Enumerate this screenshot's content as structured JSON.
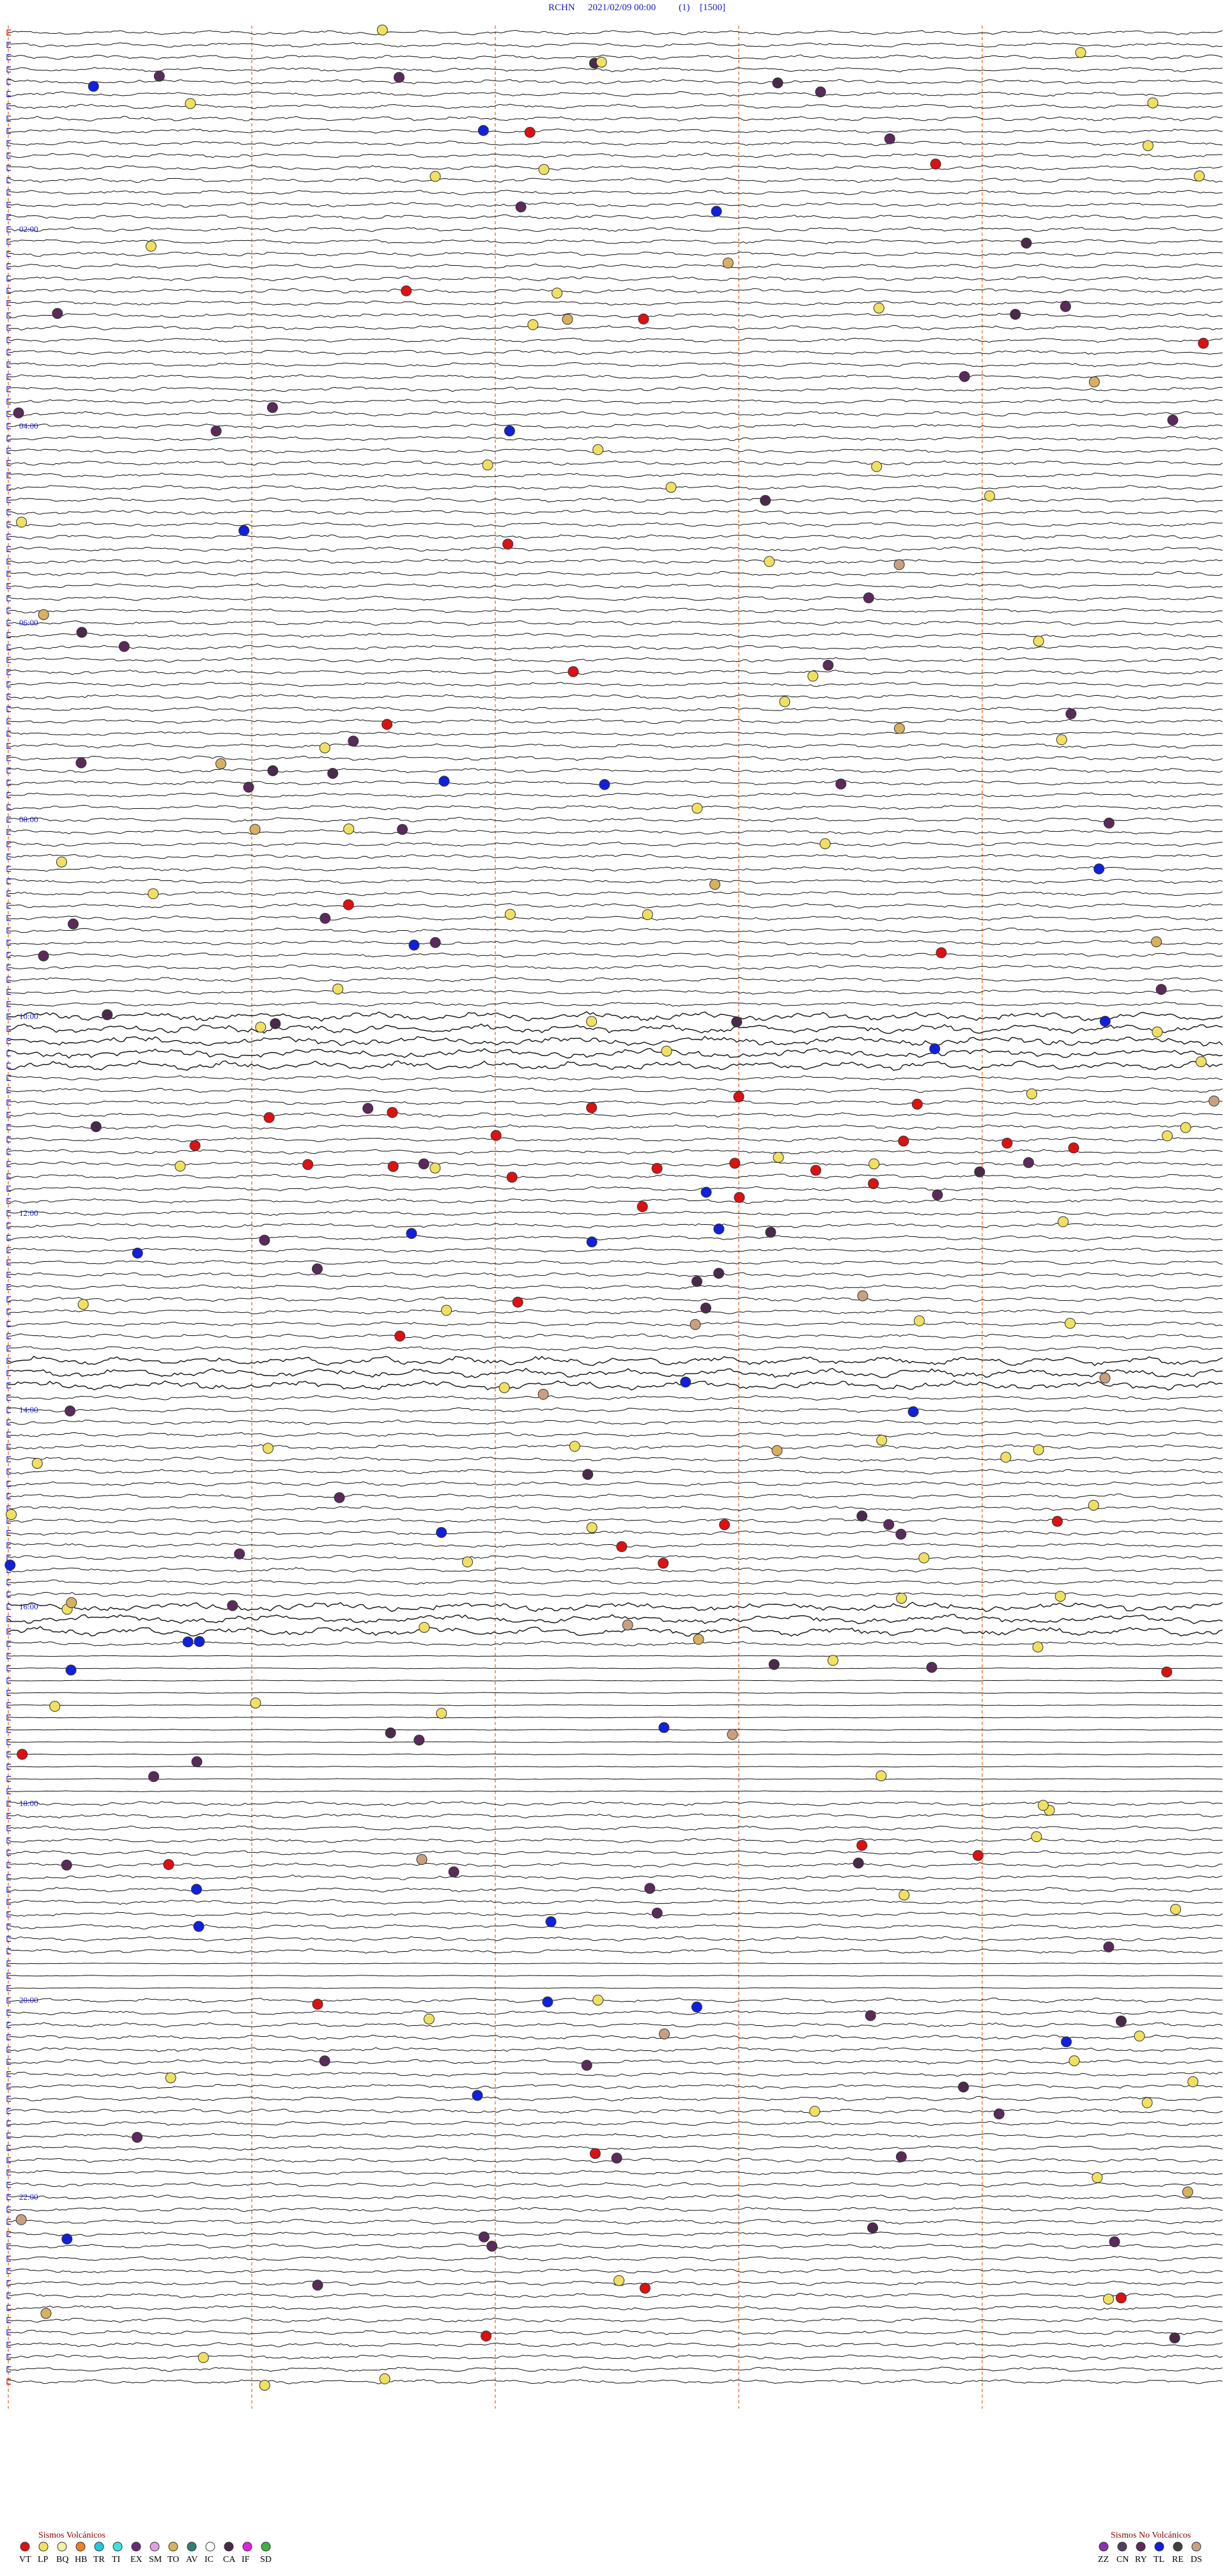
{
  "header": {
    "station": "RCHN",
    "datetime": "2021/02/09 00:00",
    "channel": "(1)",
    "scale": "[1500]"
  },
  "hour_labels": [
    "02:00",
    "04:00",
    "06:00",
    "08:00",
    "10:00",
    "12:00",
    "14:00",
    "16:00",
    "18:00",
    "20:00",
    "22:00"
  ],
  "legend_volcanic": {
    "title": "Sismos Volcánicos",
    "items": [
      {
        "code": "VT",
        "color": "#dd1111"
      },
      {
        "code": "LP",
        "color": "#f0e060"
      },
      {
        "code": "BQ",
        "color": "#f5f0a0"
      },
      {
        "code": "HB",
        "color": "#f08020"
      },
      {
        "code": "TR",
        "color": "#20c8e0"
      },
      {
        "code": "TI",
        "color": "#40e0e0"
      },
      {
        "code": "EX",
        "color": "#6a2a7a"
      },
      {
        "code": "SM",
        "color": "#e0a0e0"
      },
      {
        "code": "TO",
        "color": "#d8b060"
      },
      {
        "code": "AV",
        "color": "#308070"
      },
      {
        "code": "IC",
        "color": "#ffffff"
      },
      {
        "code": "CA",
        "color": "#4a2a4a"
      },
      {
        "code": "IF",
        "color": "#e020e0"
      },
      {
        "code": "SD",
        "color": "#40b040"
      }
    ]
  },
  "legend_nonvolcanic": {
    "title": "Sismos No Volcánicos",
    "items": [
      {
        "code": "ZZ",
        "color": "#8a30b0"
      },
      {
        "code": "CN",
        "color": "#504060"
      },
      {
        "code": "RY",
        "color": "#5a2a5a"
      },
      {
        "code": "TL",
        "color": "#1020dd"
      },
      {
        "code": "RE",
        "color": "#404040"
      },
      {
        "code": "DS",
        "color": "#c8a080"
      }
    ]
  }
}
